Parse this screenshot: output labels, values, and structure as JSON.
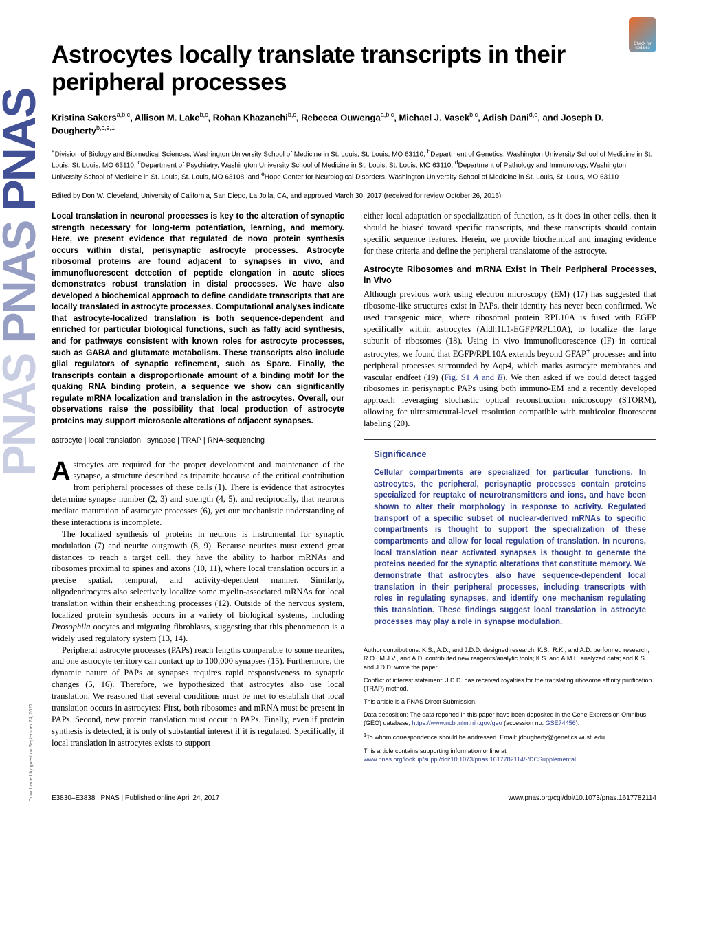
{
  "badge_text": "Check for updates",
  "pnas_logo": "PNAS",
  "title": "Astrocytes locally translate transcripts in their peripheral processes",
  "authors_html": "Kristina Sakers<sup>a,b,c</sup>, Allison M. Lake<sup>b,c</sup>, Rohan Khazanchi<sup>b,c</sup>, Rebecca Ouwenga<sup>a,b,c</sup>, Michael J. Vasek<sup>b,c</sup>, Adish Dani<sup>d,e</sup>, and Joseph D. Dougherty<sup>b,c,e,1</sup>",
  "affiliations_html": "<sup>a</sup>Division of Biology and Biomedical Sciences, Washington University School of Medicine in St. Louis, St. Louis, MO 63110; <sup>b</sup>Department of Genetics, Washington University School of Medicine in St. Louis, St. Louis, MO 63110; <sup>c</sup>Department of Psychiatry, Washington University School of Medicine in St. Louis, St. Louis, MO 63110; <sup>d</sup>Department of Pathology and Immunology, Washington University School of Medicine in St. Louis, St. Louis, MO 63108; and <sup>e</sup>Hope Center for Neurological Disorders, Washington University School of Medicine in St. Louis, St. Louis, MO 63110",
  "edited_by": "Edited by Don W. Cleveland, University of California, San Diego, La Jolla, CA, and approved March 30, 2017 (received for review October 26, 2016)",
  "abstract": "Local translation in neuronal processes is key to the alteration of synaptic strength necessary for long-term potentiation, learning, and memory. Here, we present evidence that regulated de novo protein synthesis occurs within distal, perisynaptic astrocyte processes. Astrocyte ribosomal proteins are found adjacent to synapses in vivo, and immunofluorescent detection of peptide elongation in acute slices demonstrates robust translation in distal processes. We have also developed a biochemical approach to define candidate transcripts that are locally translated in astrocyte processes. Computational analyses indicate that astrocyte-localized translation is both sequence-dependent and enriched for particular biological functions, such as fatty acid synthesis, and for pathways consistent with known roles for astrocyte processes, such as GABA and glutamate metabolism. These transcripts also include glial regulators of synaptic refinement, such as Sparc. Finally, the transcripts contain a disproportionate amount of a binding motif for the quaking RNA binding protein, a sequence we show can significantly regulate mRNA localization and translation in the astrocytes. Overall, our observations raise the possibility that local production of astrocyte proteins may support microscale alterations of adjacent synapses.",
  "keywords": "astrocyte | local translation | synapse | TRAP | RNA-sequencing",
  "body_p1_html": "strocytes are required for the proper development and maintenance of the synapse, a structure described as tripartite because of the critical contribution from peripheral processes of these cells (1). There is evidence that astrocytes determine synapse number (2, 3) and strength (4, 5), and reciprocally, that neurons mediate maturation of astrocyte processes (6), yet our mechanistic understanding of these interactions is incomplete.",
  "body_p2_html": "The localized synthesis of proteins in neurons is instrumental for synaptic modulation (7) and neurite outgrowth (8, 9). Because neurites must extend great distances to reach a target cell, they have the ability to harbor mRNAs and ribosomes proximal to spines and axons (10, 11), where local translation occurs in a precise spatial, temporal, and activity-dependent manner. Similarly, oligodendrocytes also selectively localize some myelin-associated mRNAs for local translation within their ensheathing processes (12). Outside of the nervous system, localized protein synthesis occurs in a variety of biological systems, including <span class='ital'>Drosophila</span> oocytes and migrating fibroblasts, suggesting that this phenomenon is a widely used regulatory system (13, 14).",
  "body_p3_html": "Peripheral astrocyte processes (PAPs) reach lengths comparable to some neurites, and one astrocyte territory can contact up to 100,000 synapses (15). Furthermore, the dynamic nature of PAPs at synapses requires rapid responsiveness to synaptic changes (5, 16). Therefore, we hypothesized that astrocytes also use local translation. We reasoned that several conditions must be met to establish that local translation occurs in astrocytes: First, both ribosomes and mRNA must be present in PAPs. Second, new protein translation must occur in PAPs. Finally, even if protein synthesis is detected, it is only of substantial interest if it is regulated. Specifically, if local translation in astrocytes exists to support",
  "right_p1": "either local adaptation or specialization of function, as it does in other cells, then it should be biased toward specific transcripts, and these transcripts should contain specific sequence features. Herein, we provide biochemical and imaging evidence for these criteria and define the peripheral translatome of the astrocyte.",
  "section_heading": "Astrocyte Ribosomes and mRNA Exist in Their Peripheral Processes, in Vivo",
  "right_p2_html": "Although previous work using electron microscopy (EM) (17) has suggested that ribosome-like structures exist in PAPs, their identity has never been confirmed. We used transgenic mice, where ribosomal protein RPL10A is fused with EGFP specifically within astrocytes (Aldh1L1-EGFP/RPL10A), to localize the large subunit of ribosomes (18). Using in vivo immunofluorescence (IF) in cortical astrocytes, we found that EGFP/RPL10A extends beyond GFAP<sup>+</sup> processes and into peripheral processes surrounded by Aqp4, which marks astrocyte membranes and vascular endfeet (19) (<span class='link-blue'>Fig. S1 <span class='ital'>A</span> and <span class='ital'>B</span></span>). We then asked if we could detect tagged ribosomes in perisynaptic PAPs using both immuno-EM and a recently developed approach leveraging stochastic optical reconstruction microscopy (STORM), allowing for ultrastructural-level resolution compatible with multicolor fluorescent labeling (20).",
  "significance_title": "Significance",
  "significance_text": "Cellular compartments are specialized for particular functions. In astrocytes, the peripheral, perisynaptic processes contain proteins specialized for reuptake of neurotransmitters and ions, and have been shown to alter their morphology in response to activity. Regulated transport of a specific subset of nuclear-derived mRNAs to specific compartments is thought to support the specialization of these compartments and allow for local regulation of translation. In neurons, local translation near activated synapses is thought to generate the proteins needed for the synaptic alterations that constitute memory. We demonstrate that astrocytes also have sequence-dependent local translation in their peripheral processes, including transcripts with roles in regulating synapses, and identify one mechanism regulating this translation. These findings suggest local translation in astrocyte processes may play a role in synapse modulation.",
  "footnotes": {
    "author_contrib": "Author contributions: K.S., A.D., and J.D.D. designed research; K.S., R.K., and A.D. performed research; R.O., M.J.V., and A.D. contributed new reagents/analytic tools; K.S. and A.M.L. analyzed data; and K.S. and J.D.D. wrote the paper.",
    "coi": "Conflict of interest statement: J.D.D. has received royalties for the translating ribosome affinity purification (TRAP) method.",
    "direct": "This article is a PNAS Direct Submission.",
    "data_html": "Data deposition: The data reported in this paper have been deposited in the Gene Expression Omnibus (GEO) database, <span class='link-blue'>https://www.ncbi.nlm.nih.gov/geo</span> (accession no. <span class='link-blue'>GSE74456</span>).",
    "corr_html": "<sup>1</sup>To whom correspondence should be addressed. Email: jdougherty@genetics.wustl.edu.",
    "supp_html": "This article contains supporting information online at <span class='link-blue'>www.pnas.org/lookup/suppl/doi:10.1073/pnas.1617782114/-/DCSupplemental</span>."
  },
  "footer_left": "E3830–E3838  |  PNAS  |  Published online April 24, 2017",
  "footer_right": "www.pnas.org/cgi/doi/10.1073/pnas.1617782114",
  "download_note": "Downloaded by guest on September 24, 2021"
}
